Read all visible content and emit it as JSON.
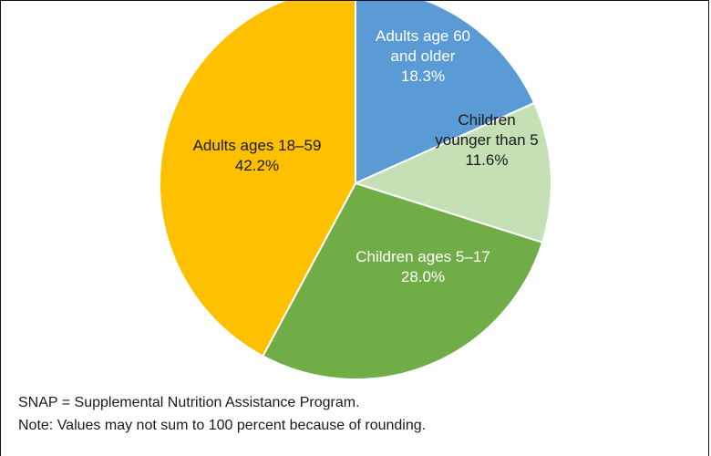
{
  "chart_data": {
    "type": "pie",
    "slices": [
      {
        "label_lines": [
          "Adults age 60",
          "and older"
        ],
        "value_label": "18.3%",
        "value": 18.3,
        "color": "#5b9bd5",
        "text_color": "#ffffff"
      },
      {
        "label_lines": [
          "Children",
          "younger than 5"
        ],
        "value_label": "11.6%",
        "value": 11.6,
        "color": "#c5e0b4",
        "text_color": "#1a1a1a"
      },
      {
        "label_lines": [
          "Children ages 5–17"
        ],
        "value_label": "28.0%",
        "value": 28.0,
        "color": "#70ad47",
        "text_color": "#ffffff"
      },
      {
        "label_lines": [
          "Adults ages 18–59"
        ],
        "value_label": "42.2%",
        "value": 42.2,
        "color": "#ffc000",
        "text_color": "#1a1a1a"
      }
    ],
    "start": "top",
    "direction": "clockwise",
    "edge_color": "#ffffff"
  },
  "notes": {
    "line1": "SNAP = Supplemental Nutrition Assistance Program.",
    "line2": "Note: Values may not sum to 100 percent because of rounding."
  }
}
